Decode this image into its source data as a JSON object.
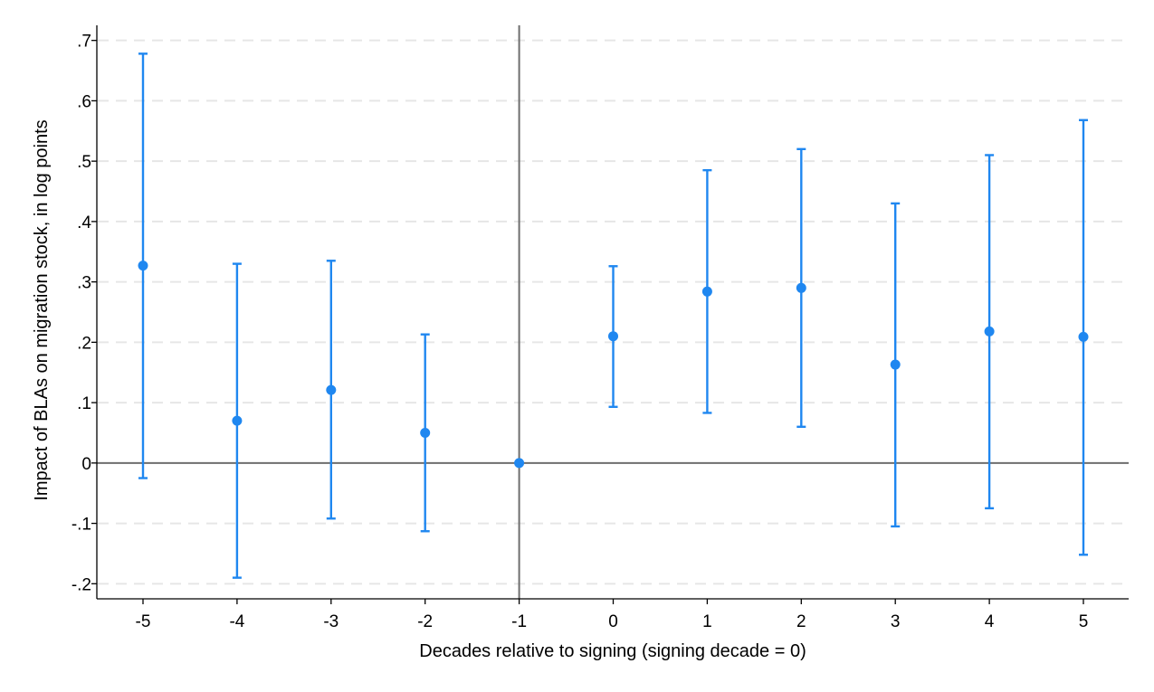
{
  "chart_data": {
    "type": "scatter",
    "title": "",
    "xlabel": "Decades relative to signing (signing decade = 0)",
    "ylabel": "Impact of BLAs on migration stock, in log points",
    "x_categories": [
      -5,
      -4,
      -3,
      -2,
      -1,
      0,
      1,
      2,
      3,
      4,
      5
    ],
    "x_tick_labels": [
      "-5",
      "-4",
      "-3",
      "-2",
      "-1",
      "0",
      "1",
      "2",
      "3",
      "4",
      "5"
    ],
    "ylim": [
      -0.225,
      0.725
    ],
    "y_ticks": [
      -0.2,
      -0.1,
      0,
      0.1,
      0.2,
      0.3,
      0.4,
      0.5,
      0.6,
      0.7
    ],
    "y_tick_labels": [
      "-.2",
      "-.1",
      "0",
      ".1",
      ".2",
      ".3",
      ".4",
      ".5",
      ".6",
      ".7"
    ],
    "grid": "horizontal dashed",
    "reference_lines": {
      "x": -1,
      "y": 0
    },
    "points": [
      {
        "x": -5,
        "estimate": 0.327,
        "ci_low": -0.025,
        "ci_high": 0.678
      },
      {
        "x": -4,
        "estimate": 0.07,
        "ci_low": -0.19,
        "ci_high": 0.33
      },
      {
        "x": -3,
        "estimate": 0.121,
        "ci_low": -0.092,
        "ci_high": 0.335
      },
      {
        "x": -2,
        "estimate": 0.05,
        "ci_low": -0.113,
        "ci_high": 0.213
      },
      {
        "x": -1,
        "estimate": 0.0
      },
      {
        "x": 0,
        "estimate": 0.21,
        "ci_low": 0.093,
        "ci_high": 0.326
      },
      {
        "x": 1,
        "estimate": 0.284,
        "ci_low": 0.083,
        "ci_high": 0.485
      },
      {
        "x": 2,
        "estimate": 0.29,
        "ci_low": 0.06,
        "ci_high": 0.52
      },
      {
        "x": 3,
        "estimate": 0.163,
        "ci_low": -0.105,
        "ci_high": 0.43
      },
      {
        "x": 4,
        "estimate": 0.218,
        "ci_low": -0.075,
        "ci_high": 0.51
      },
      {
        "x": 5,
        "estimate": 0.209,
        "ci_low": -0.152,
        "ci_high": 0.568
      }
    ],
    "colors": {
      "marker": "#1f87f0",
      "axis": "#000000",
      "reference_line": "#6e6e6e",
      "grid": "#e6e6e6"
    }
  }
}
